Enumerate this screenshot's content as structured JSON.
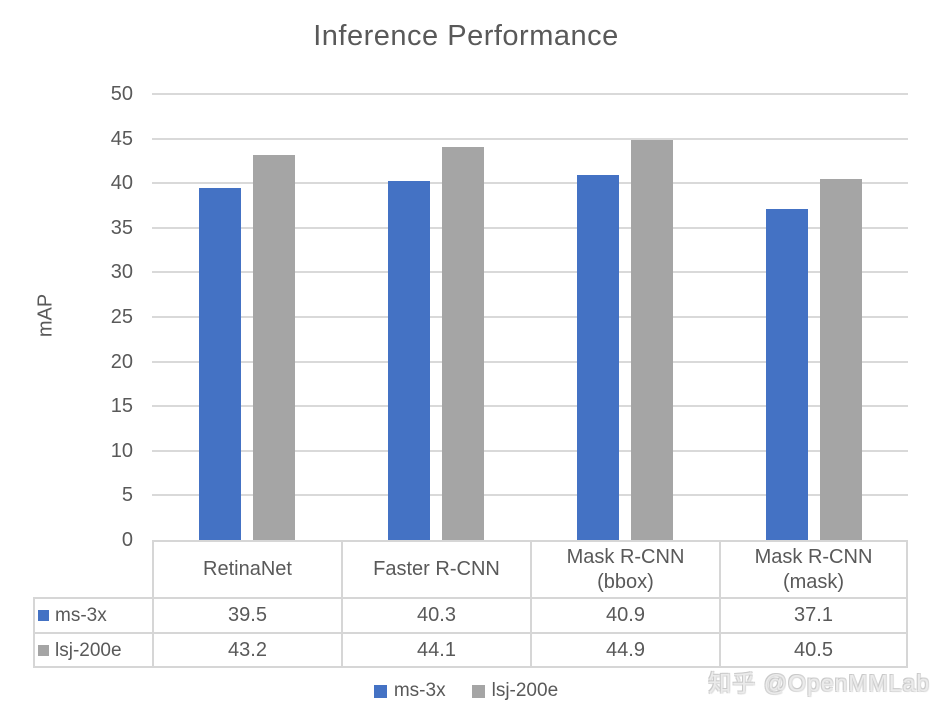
{
  "title": "Inference Performance",
  "chart_data": {
    "type": "bar",
    "title": "Inference Performance",
    "xlabel": "",
    "ylabel": "mAP",
    "ylim": [
      0,
      50
    ],
    "ytick_step": 5,
    "grid": true,
    "legend_position": "bottom",
    "categories": [
      "RetinaNet",
      "Faster R-CNN",
      "Mask R-CNN\n(bbox)",
      "Mask R-CNN\n(mask)"
    ],
    "series": [
      {
        "name": "ms-3x",
        "color": "#4472C4",
        "values": [
          39.5,
          40.3,
          40.9,
          37.1
        ]
      },
      {
        "name": "lsj-200e",
        "color": "#A5A5A5",
        "values": [
          43.2,
          44.1,
          44.9,
          40.5
        ]
      }
    ],
    "data_table_shown": true
  },
  "legend": {
    "items": [
      {
        "label": "ms-3x",
        "color": "#4472C4"
      },
      {
        "label": "lsj-200e",
        "color": "#A5A5A5"
      }
    ]
  },
  "watermark": "知乎 @OpenMMLab",
  "colors": {
    "text": "#595959",
    "bar_blue": "#4472C4",
    "bar_gray": "#A5A5A5",
    "gridline": "#D9D9D9",
    "table_border": "#D6D6D6",
    "background": "#FFFFFF"
  }
}
